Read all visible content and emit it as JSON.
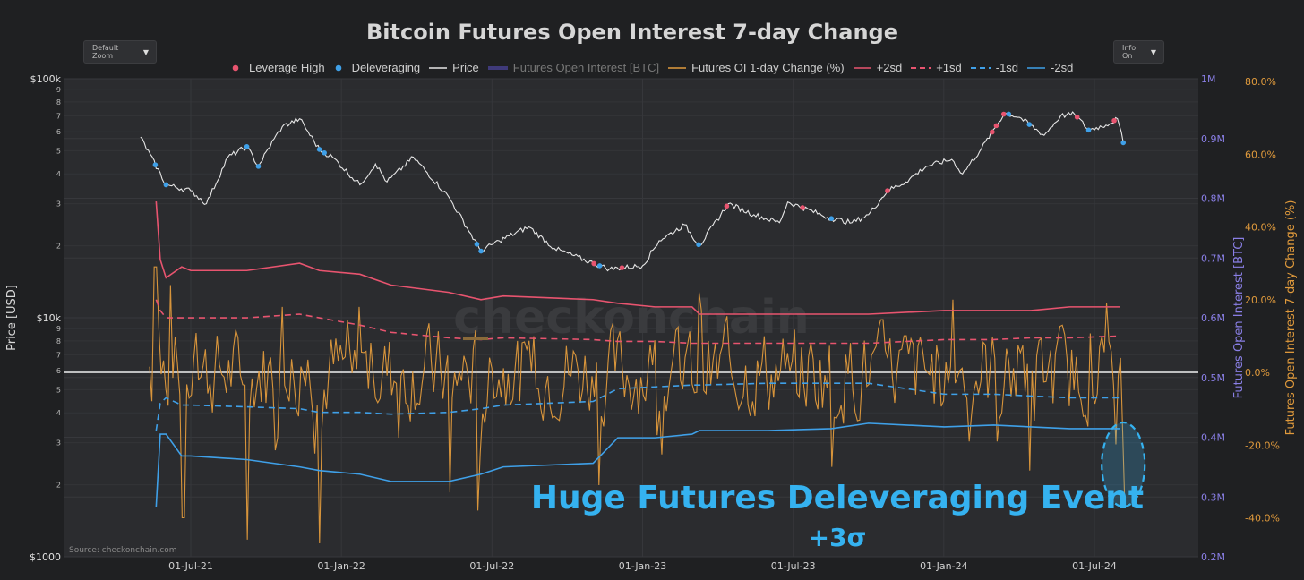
{
  "chart_data": {
    "type": "line",
    "title": "Bitcoin Futures Open Interest 7-day Change",
    "controls": {
      "zoom_label": "Default Zoom",
      "info_label": "Info On"
    },
    "legend": [
      {
        "name": "Leverage High",
        "kind": "dot",
        "color": "#e8546f"
      },
      {
        "name": "Deleveraging",
        "kind": "dot",
        "color": "#3fa0e8"
      },
      {
        "name": "Price",
        "kind": "line",
        "color": "#e6e6e6"
      },
      {
        "name": "Futures Open Interest [BTC]",
        "kind": "thick",
        "color": "#3f3a7a",
        "dim": true
      },
      {
        "name": "Futures OI 1-day Change (%)",
        "kind": "line",
        "color": "#e09a3c"
      },
      {
        "name": "+2sd",
        "kind": "line",
        "color": "#e8546f"
      },
      {
        "name": "+1sd",
        "kind": "dash",
        "color": "#e8546f"
      },
      {
        "name": "-1sd",
        "kind": "dash",
        "color": "#3fa0e8"
      },
      {
        "name": "-2sd",
        "kind": "line",
        "color": "#3fa0e8"
      }
    ],
    "x_ticks": [
      "01-Jul-21",
      "01-Jan-22",
      "01-Jul-22",
      "01-Jan-23",
      "01-Jul-23",
      "01-Jan-24",
      "01-Jul-24"
    ],
    "y_left": {
      "label": "Price [USD]",
      "scale": "log",
      "range": [
        1000,
        100000
      ],
      "major_ticks": [
        "$1000",
        "$10k",
        "$100k"
      ],
      "minor_ticks": [
        "2",
        "3",
        "4",
        "5",
        "6",
        "7",
        "8",
        "9"
      ]
    },
    "y_right1": {
      "label": "Futures Open Interest [BTC]",
      "range": [
        200000,
        1000000
      ],
      "ticks": [
        "0.2M",
        "0.3M",
        "0.4M",
        "0.5M",
        "0.6M",
        "0.7M",
        "0.8M",
        "0.9M",
        "1M"
      ]
    },
    "y_right2": {
      "label": "Futures Open Interest 7-day Change (%)",
      "range": [
        -50,
        80
      ],
      "ticks": [
        "-40.0%",
        "-20.0%",
        "0.0%",
        "20.0%",
        "40.0%",
        "60.0%",
        "80.0%"
      ]
    },
    "price": {
      "dates": [
        "2021-05-01",
        "2021-06-01",
        "2021-07-01",
        "2021-07-20",
        "2021-08-15",
        "2021-09-07",
        "2021-09-21",
        "2021-10-10",
        "2021-10-20",
        "2021-11-10",
        "2021-12-05",
        "2021-12-20",
        "2022-01-22",
        "2022-02-10",
        "2022-02-24",
        "2022-03-28",
        "2022-05-10",
        "2022-06-18",
        "2022-07-10",
        "2022-08-15",
        "2022-09-15",
        "2022-11-09",
        "2022-11-21",
        "2022-12-31",
        "2023-01-20",
        "2023-02-20",
        "2023-03-10",
        "2023-04-14",
        "2023-05-15",
        "2023-06-15",
        "2023-06-25",
        "2023-08-17",
        "2023-09-11",
        "2023-10-01",
        "2023-10-24",
        "2023-11-15",
        "2023-12-10",
        "2024-01-10",
        "2024-01-23",
        "2024-02-15",
        "2024-03-14",
        "2024-04-01",
        "2024-05-01",
        "2024-05-21",
        "2024-06-07",
        "2024-06-24",
        "2024-07-15",
        "2024-07-29",
        "2024-08-05"
      ],
      "values": [
        57000,
        36000,
        34000,
        30000,
        47000,
        52000,
        43000,
        56000,
        63000,
        68000,
        50000,
        47000,
        36000,
        44000,
        37000,
        47000,
        32000,
        19000,
        21000,
        24000,
        19500,
        16500,
        16000,
        16500,
        21000,
        24500,
        20000,
        30000,
        27000,
        25000,
        30500,
        26000,
        25000,
        27000,
        34000,
        37000,
        43000,
        46000,
        40000,
        51000,
        72000,
        69000,
        58000,
        70000,
        71000,
        61000,
        64000,
        68000,
        54000
      ]
    },
    "signals": {
      "leverage_high": [
        "2024-02-28",
        "2024-03-04",
        "2024-03-13",
        "2024-06-10",
        "2024-07-25",
        "2023-04-12",
        "2023-07-13",
        "2023-10-24",
        "2022-12-06",
        "2022-11-02"
      ],
      "deleveraging": [
        "2021-06-01",
        "2021-05-19",
        "2021-09-07",
        "2021-09-21",
        "2021-12-04",
        "2021-12-10",
        "2022-06-13",
        "2022-06-18",
        "2022-11-09",
        "2023-03-09",
        "2023-08-17",
        "2024-03-19",
        "2024-04-13",
        "2024-06-24",
        "2024-08-05"
      ]
    },
    "oi_7d_change_bands": {
      "dates": [
        "2021-05-20",
        "2021-05-25",
        "2021-06-01",
        "2021-06-20",
        "2021-07-01",
        "2021-09-07",
        "2021-11-10",
        "2021-12-04",
        "2022-01-22",
        "2022-03-01",
        "2022-05-10",
        "2022-06-18",
        "2022-07-15",
        "2022-11-01",
        "2022-12-01",
        "2023-01-15",
        "2023-03-01",
        "2023-03-10",
        "2023-06-01",
        "2023-08-17",
        "2023-10-01",
        "2024-01-01",
        "2024-03-01",
        "2024-04-15",
        "2024-06-01",
        "2024-08-01"
      ],
      "plus2sd": [
        47,
        31,
        26,
        29,
        28,
        28,
        30,
        28,
        27,
        24,
        22,
        20,
        21,
        20,
        19,
        18,
        18,
        16,
        16,
        16,
        16,
        17,
        17,
        17,
        18,
        18
      ],
      "plus1sd": [
        20,
        17,
        15,
        15,
        15,
        15,
        16,
        15,
        13,
        11,
        9.5,
        9,
        9.5,
        9,
        8.5,
        8.5,
        8,
        8,
        8,
        8,
        8,
        9,
        9,
        9.5,
        9.5,
        10
      ],
      "minus1sd": [
        -16,
        -8.5,
        -7,
        -9,
        -9,
        -9.5,
        -10,
        -11,
        -11,
        -11.5,
        -11,
        -10,
        -9,
        -8,
        -4.5,
        -4,
        -3.5,
        -3.5,
        -3,
        -3,
        -3,
        -6,
        -6,
        -6.5,
        -7,
        -7
      ],
      "minus2sd": [
        -37,
        -17,
        -17,
        -23,
        -23,
        -24,
        -26,
        -27,
        -28,
        -30,
        -30,
        -28,
        -26,
        -25,
        -18,
        -18,
        -17,
        -16,
        -16,
        -15.5,
        -14,
        -15,
        -14.5,
        -15,
        -15.5,
        -15.5
      ]
    },
    "oi_7d_change_extremes": {
      "dates": [
        "2021-05-19",
        "2021-06-06",
        "2021-06-22",
        "2021-09-07",
        "2021-10-20",
        "2021-12-04",
        "2022-01-22",
        "2022-05-12",
        "2022-06-13",
        "2022-11-09",
        "2023-03-10",
        "2023-08-17",
        "2024-01-12",
        "2024-03-05",
        "2024-04-13",
        "2024-07-15",
        "2024-08-05"
      ],
      "values": [
        29,
        24,
        -40,
        -46,
        18,
        -47,
        18,
        -33,
        -38,
        -31,
        22,
        -26,
        20,
        -19,
        -27,
        19,
        -35
      ]
    },
    "annotation": {
      "text": "Huge Futures Deleveraging Event",
      "sigma": "+3σ",
      "date": "2024-08-05",
      "color": "#35b2f0"
    },
    "source": "Source: checkonchain.com",
    "watermark": "checkonchain"
  }
}
